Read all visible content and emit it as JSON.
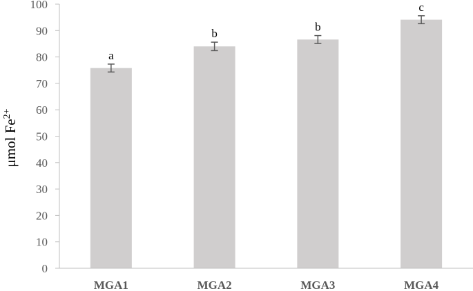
{
  "chart_data": {
    "type": "bar",
    "categories": [
      "MGA1",
      "MGA2",
      "MGA3",
      "MGA4"
    ],
    "values": [
      75.8,
      84.0,
      86.6,
      94.1
    ],
    "errors": [
      1.5,
      1.6,
      1.5,
      1.5
    ],
    "significance_letters": [
      "a",
      "b",
      "b",
      "c"
    ],
    "title": "",
    "xlabel": "",
    "ylabel": {
      "text": "μmol Fe",
      "superscript": "2+"
    },
    "ylim": [
      0,
      100
    ],
    "yticks": [
      "0",
      "10",
      "20",
      "30",
      "40",
      "50",
      "60",
      "70",
      "80",
      "90",
      "100"
    ],
    "grid": false,
    "legend": "none",
    "colors": {
      "bar": "#d0cece",
      "error_bar": "#595959",
      "axis": "#bfbfbf",
      "tick_text": "#595959"
    }
  }
}
